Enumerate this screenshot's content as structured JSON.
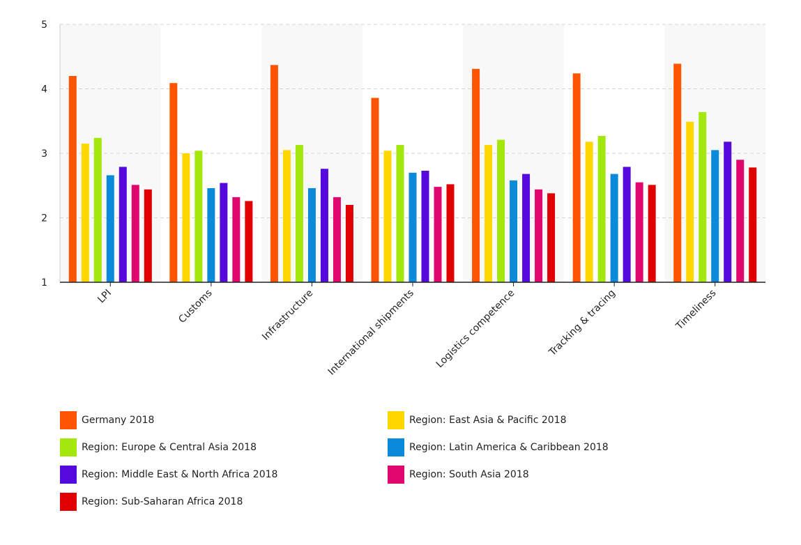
{
  "chart_data": {
    "type": "bar",
    "title": "",
    "xlabel": "",
    "ylabel": "",
    "ylim": [
      1,
      5
    ],
    "yticks": [
      1,
      2,
      3,
      4,
      5
    ],
    "grid": true,
    "legend_position": "bottom",
    "categories": [
      "LPI",
      "Customs",
      "Infrastructure",
      "International shipments",
      "Logistics competence",
      "Tracking & tracing",
      "Timeliness"
    ],
    "series": [
      {
        "name": "Germany 2018",
        "color": "#FF5500",
        "values": [
          4.2,
          4.09,
          4.37,
          3.86,
          4.31,
          4.24,
          4.39
        ]
      },
      {
        "name": "Region: East Asia & Pacific 2018",
        "color": "#FFD700",
        "values": [
          3.15,
          3.0,
          3.05,
          3.04,
          3.13,
          3.18,
          3.49
        ]
      },
      {
        "name": "Region: Europe & Central Asia 2018",
        "color": "#A3E70C",
        "values": [
          3.24,
          3.04,
          3.13,
          3.13,
          3.21,
          3.27,
          3.64
        ]
      },
      {
        "name": "Region: Latin America & Caribbean 2018",
        "color": "#0A8AD8",
        "values": [
          2.66,
          2.46,
          2.46,
          2.7,
          2.58,
          2.68,
          3.05
        ]
      },
      {
        "name": "Region: Middle East & North Africa 2018",
        "color": "#5509DD",
        "values": [
          2.79,
          2.54,
          2.76,
          2.73,
          2.68,
          2.79,
          3.18
        ]
      },
      {
        "name": "Region: South Asia 2018",
        "color": "#E0076F",
        "values": [
          2.51,
          2.32,
          2.32,
          2.48,
          2.44,
          2.55,
          2.9
        ]
      },
      {
        "name": "Region: Sub-Saharan Africa 2018",
        "color": "#E00000",
        "values": [
          2.44,
          2.26,
          2.2,
          2.52,
          2.38,
          2.51,
          2.78
        ]
      }
    ]
  }
}
